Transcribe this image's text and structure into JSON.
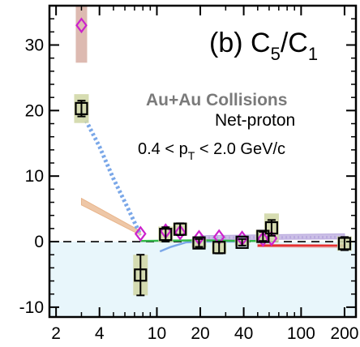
{
  "chart_data": {
    "type": "scatter",
    "title": "",
    "xlabel": "",
    "ylabel": "",
    "x_scale": "log",
    "xlim": [
      1.8,
      240
    ],
    "ylim": [
      -11.5,
      36
    ],
    "x_ticks": [
      2,
      4,
      10,
      20,
      40,
      100,
      200
    ],
    "x_tick_labels": [
      "2",
      "4",
      "10",
      "20",
      "40",
      "100",
      "200"
    ],
    "y_ticks": [
      -10,
      0,
      10,
      20,
      30
    ],
    "y_tick_labels": [
      "-10",
      "0",
      "10",
      "20",
      "30"
    ],
    "grid": false,
    "reference_line_y": 0,
    "negative_region_fill": "#e8f6fb",
    "annotations": {
      "panel_main": "(b) C",
      "panel_sub1": "5",
      "panel_sep": "/C",
      "panel_sub2": "1",
      "system": "Au+Au Collisions",
      "species": "Net-proton",
      "pt_pre": "0.4 < p",
      "pt_sub": "T",
      "pt_post": " < 2.0 GeV/c"
    },
    "series": [
      {
        "marker": "open-square",
        "color": "#000000",
        "points": [
          {
            "x": 3.0,
            "y": 20.3,
            "err": 1.2,
            "sys": 2.2
          },
          {
            "x": 7.7,
            "y": -5.1,
            "err": 3.1,
            "sys": 3.1
          },
          {
            "x": 11.5,
            "y": 1.1,
            "err": 1.1,
            "sys": 1.2
          },
          {
            "x": 14.5,
            "y": 1.9,
            "err": 0.9,
            "sys": 1.0
          },
          {
            "x": 19.6,
            "y": -0.2,
            "err": 0.6,
            "sys": 0.7
          },
          {
            "x": 27,
            "y": -0.9,
            "err": 0.9,
            "sys": 0.9
          },
          {
            "x": 39,
            "y": -0.1,
            "err": 0.5,
            "sys": 0.5
          },
          {
            "x": 54.4,
            "y": 0.8,
            "err": 0.7,
            "sys": 1.0
          },
          {
            "x": 62.4,
            "y": 2.1,
            "err": 1.2,
            "sys": 2.2
          },
          {
            "x": 200,
            "y": -0.3,
            "err": 1.0,
            "sys": 1.1
          }
        ]
      },
      {
        "marker": "open-diamond",
        "color": "#cc22cc",
        "points": [
          {
            "x": 3.0,
            "y": 33,
            "sys": 5.7
          },
          {
            "x": 7.7,
            "y": 1.2
          },
          {
            "x": 11.5,
            "y": 1.6
          },
          {
            "x": 14.5,
            "y": 1.4
          },
          {
            "x": 19.6,
            "y": 0.6
          },
          {
            "x": 27,
            "y": 0.7
          },
          {
            "x": 39,
            "y": 0.5
          },
          {
            "x": 54.4,
            "y": 0.4
          },
          {
            "x": 62.4,
            "y": 0.5
          }
        ]
      }
    ],
    "bands": [
      {
        "name": "",
        "color": "#e8b48a",
        "lower": [
          [
            3.0,
            5.6
          ],
          [
            7.7,
            1.0
          ]
        ],
        "upper": [
          [
            3.0,
            6.6
          ],
          [
            7.7,
            1.6
          ]
        ]
      },
      {
        "name": "",
        "color": "#e3a3a3",
        "lower": [
          [
            50,
            -0.8
          ],
          [
            200,
            -0.9
          ]
        ],
        "upper": [
          [
            50,
            -0.4
          ],
          [
            200,
            -0.5
          ]
        ]
      },
      {
        "name": "",
        "color": "#b9a9de",
        "lower": [
          [
            20,
            0.3
          ],
          [
            200,
            0.4
          ]
        ],
        "upper": [
          [
            20,
            0.9
          ],
          [
            200,
            1.2
          ]
        ]
      }
    ],
    "curves": [
      {
        "style": "dotted-thick",
        "color": "#7aa7e8",
        "points": [
          [
            3.0,
            19.8
          ],
          [
            4.0,
            14.5
          ],
          [
            5.0,
            9.6
          ],
          [
            6.2,
            5.4
          ],
          [
            7.7,
            1.0
          ]
        ]
      },
      {
        "style": "solid",
        "color": "#7aa7e8",
        "points": [
          [
            10.5,
            -1.5
          ],
          [
            12.5,
            -0.8
          ],
          [
            16,
            -0.1
          ],
          [
            22,
            0.0
          ],
          [
            40,
            0.0
          ]
        ]
      },
      {
        "style": "solid",
        "color": "#33b84a",
        "points": [
          [
            7.7,
            0.1
          ],
          [
            20,
            0.2
          ],
          [
            40,
            0.1
          ],
          [
            62.4,
            0.1
          ]
        ]
      },
      {
        "style": "solid",
        "color": "#e83030",
        "points": [
          [
            50,
            -0.6
          ],
          [
            100,
            -0.6
          ],
          [
            200,
            -0.6
          ]
        ]
      },
      {
        "style": "dotted",
        "color": "#b9a9de",
        "points": [
          [
            20,
            0.6
          ],
          [
            200,
            0.7
          ]
        ]
      }
    ]
  }
}
